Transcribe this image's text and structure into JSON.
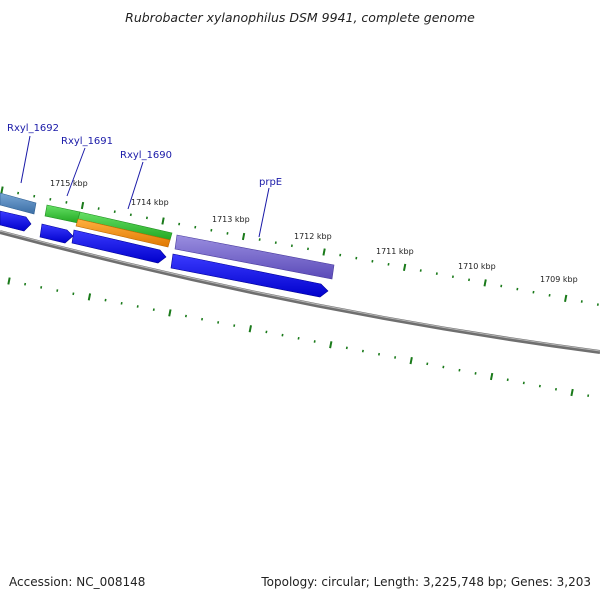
{
  "title": "Rubrobacter xylanophilus DSM 9941, complete genome",
  "accession": "Accession: NC_008148",
  "summary": "Topology: circular; Length: 3,225,748 bp; Genes: 3,203",
  "colors": {
    "backbone": "#7a7a7a",
    "ticks": "#1a7a1a",
    "forward_cds": "#0000ee",
    "gene_label": "#1a1aa8",
    "rxyl_1692": "#4a7fb8",
    "rxyl_1691": "#33cc33",
    "rxyl_1690_green": "#33bb33",
    "rxyl_1690_orange": "#ff8c00",
    "prpE": "#7766cc"
  },
  "kbp_labels": [
    "1715 kbp",
    "1714 kbp",
    "1713 kbp",
    "1712 kbp",
    "1711 kbp",
    "1710 kbp",
    "1709 kbp"
  ],
  "gene_labels": [
    "Rxyl_1692",
    "Rxyl_1691",
    "Rxyl_1690",
    "prpE"
  ]
}
